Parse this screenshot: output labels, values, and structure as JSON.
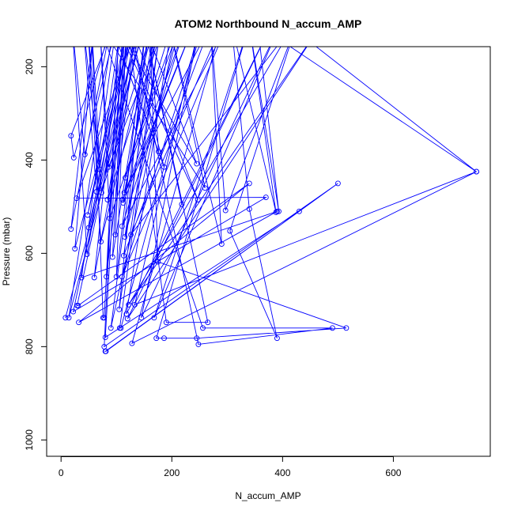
{
  "chart_data": {
    "type": "line",
    "title": "ATOM2 Northbound N_accum_AMP",
    "xlabel": "N_accum_AMP",
    "ylabel": "Pressure (mbar)",
    "xlim": [
      -26,
      775
    ],
    "ylim": [
      1035,
      157
    ],
    "y_reversed": true,
    "x_ticks": [
      0,
      200,
      400,
      600
    ],
    "y_ticks": [
      200,
      400,
      600,
      800,
      1000
    ],
    "marker": "open-circle",
    "color": "#0000ff",
    "series": [
      {
        "values": [
          {
            "x": 8,
            "y": 738
          },
          {
            "x": 150,
            "y": 110
          },
          {
            "x": 14,
            "y": 738
          },
          {
            "x": 95,
            "y": 110
          },
          {
            "x": 18,
            "y": 348
          },
          {
            "x": 23,
            "y": 395
          },
          {
            "x": 90,
            "y": 110
          },
          {
            "x": 18,
            "y": 548
          },
          {
            "x": 60,
            "y": 110
          },
          {
            "x": 25,
            "y": 590
          },
          {
            "x": 132,
            "y": 110
          },
          {
            "x": 22,
            "y": 725
          },
          {
            "x": 370,
            "y": 480
          },
          {
            "x": 28,
            "y": 482
          },
          {
            "x": 138,
            "y": 110
          },
          {
            "x": 29,
            "y": 712
          },
          {
            "x": 31,
            "y": 712
          },
          {
            "x": 340,
            "y": 450
          },
          {
            "x": 32,
            "y": 748
          },
          {
            "x": 390,
            "y": 510
          },
          {
            "x": 37,
            "y": 652
          },
          {
            "x": 100,
            "y": 110
          },
          {
            "x": 43,
            "y": 388
          },
          {
            "x": 20,
            "y": 110
          },
          {
            "x": 47,
            "y": 602
          },
          {
            "x": 120,
            "y": 110
          },
          {
            "x": 48,
            "y": 518
          },
          {
            "x": 128,
            "y": 110
          },
          {
            "x": 50,
            "y": 545
          },
          {
            "x": 143,
            "y": 110
          },
          {
            "x": 60,
            "y": 652
          },
          {
            "x": 108,
            "y": 110
          },
          {
            "x": 64,
            "y": 468
          },
          {
            "x": 40,
            "y": 110
          },
          {
            "x": 70,
            "y": 420
          },
          {
            "x": 48,
            "y": 110
          },
          {
            "x": 72,
            "y": 575
          },
          {
            "x": 167,
            "y": 110
          },
          {
            "x": 73,
            "y": 470
          },
          {
            "x": 55,
            "y": 110
          },
          {
            "x": 76,
            "y": 738
          },
          {
            "x": 78,
            "y": 738
          },
          {
            "x": 105,
            "y": 110
          },
          {
            "x": 78,
            "y": 800
          },
          {
            "x": 500,
            "y": 450
          },
          {
            "x": 80,
            "y": 810
          },
          {
            "x": 81,
            "y": 810
          },
          {
            "x": 430,
            "y": 510
          },
          {
            "x": 80,
            "y": 780
          },
          {
            "x": 112,
            "y": 110
          },
          {
            "x": 82,
            "y": 650
          },
          {
            "x": 135,
            "y": 110
          },
          {
            "x": 84,
            "y": 485
          },
          {
            "x": 185,
            "y": 110
          },
          {
            "x": 86,
            "y": 415
          },
          {
            "x": 70,
            "y": 110
          },
          {
            "x": 88,
            "y": 525
          },
          {
            "x": 210,
            "y": 110
          },
          {
            "x": 90,
            "y": 760
          },
          {
            "x": 160,
            "y": 110
          },
          {
            "x": 93,
            "y": 608
          },
          {
            "x": 115,
            "y": 110
          },
          {
            "x": 98,
            "y": 560
          },
          {
            "x": 118,
            "y": 110
          },
          {
            "x": 100,
            "y": 650
          },
          {
            "x": 153,
            "y": 110
          },
          {
            "x": 105,
            "y": 720
          },
          {
            "x": 180,
            "y": 110
          },
          {
            "x": 106,
            "y": 760
          },
          {
            "x": 108,
            "y": 760
          },
          {
            "x": 255,
            "y": 110
          },
          {
            "x": 110,
            "y": 650
          },
          {
            "x": 300,
            "y": 110
          },
          {
            "x": 110,
            "y": 542
          },
          {
            "x": 225,
            "y": 110
          },
          {
            "x": 111,
            "y": 485
          },
          {
            "x": 240,
            "y": 110
          },
          {
            "x": 112,
            "y": 492
          },
          {
            "x": 170,
            "y": 110
          },
          {
            "x": 113,
            "y": 605
          },
          {
            "x": 270,
            "y": 110
          },
          {
            "x": 114,
            "y": 470
          },
          {
            "x": 175,
            "y": 110
          },
          {
            "x": 115,
            "y": 565
          },
          {
            "x": 215,
            "y": 110
          },
          {
            "x": 116,
            "y": 438
          },
          {
            "x": 200,
            "y": 110
          },
          {
            "x": 118,
            "y": 730
          },
          {
            "x": 380,
            "y": 110
          },
          {
            "x": 120,
            "y": 740
          },
          {
            "x": 470,
            "y": 110
          },
          {
            "x": 122,
            "y": 710
          },
          {
            "x": 420,
            "y": 110
          },
          {
            "x": 126,
            "y": 560
          },
          {
            "x": 290,
            "y": 110
          },
          {
            "x": 128,
            "y": 793
          },
          {
            "x": 750,
            "y": 425
          },
          {
            "x": 133,
            "y": 710
          },
          {
            "x": 250,
            "y": 110
          },
          {
            "x": 145,
            "y": 738
          },
          {
            "x": 395,
            "y": 110
          },
          {
            "x": 168,
            "y": 738
          },
          {
            "x": 340,
            "y": 110
          },
          {
            "x": 172,
            "y": 782
          },
          {
            "x": 186,
            "y": 782
          },
          {
            "x": 245,
            "y": 782
          },
          {
            "x": 515,
            "y": 760
          },
          {
            "x": 175,
            "y": 618
          },
          {
            "x": 160,
            "y": 110
          },
          {
            "x": 176,
            "y": 382
          },
          {
            "x": 90,
            "y": 110
          },
          {
            "x": 186,
            "y": 415
          },
          {
            "x": 120,
            "y": 110
          },
          {
            "x": 190,
            "y": 748
          },
          {
            "x": 265,
            "y": 748
          },
          {
            "x": 150,
            "y": 110
          },
          {
            "x": 218,
            "y": 495
          },
          {
            "x": 150,
            "y": 110
          },
          {
            "x": 245,
            "y": 408
          },
          {
            "x": 100,
            "y": 110
          },
          {
            "x": 247,
            "y": 485
          },
          {
            "x": 125,
            "y": 110
          },
          {
            "x": 248,
            "y": 795
          },
          {
            "x": 490,
            "y": 760
          },
          {
            "x": 256,
            "y": 760
          },
          {
            "x": 70,
            "y": 110
          },
          {
            "x": 260,
            "y": 460
          },
          {
            "x": 195,
            "y": 110
          },
          {
            "x": 290,
            "y": 580
          },
          {
            "x": 270,
            "y": 110
          },
          {
            "x": 297,
            "y": 508
          },
          {
            "x": 425,
            "y": 110
          },
          {
            "x": 305,
            "y": 552
          },
          {
            "x": 390,
            "y": 782
          },
          {
            "x": 340,
            "y": 505
          },
          {
            "x": 308,
            "y": 110
          },
          {
            "x": 388,
            "y": 512
          },
          {
            "x": 340,
            "y": 110
          },
          {
            "x": 393,
            "y": 510
          },
          {
            "x": 355,
            "y": 110
          },
          {
            "x": 750,
            "y": 425
          },
          {
            "x": 410,
            "y": 110
          }
        ]
      }
    ]
  }
}
